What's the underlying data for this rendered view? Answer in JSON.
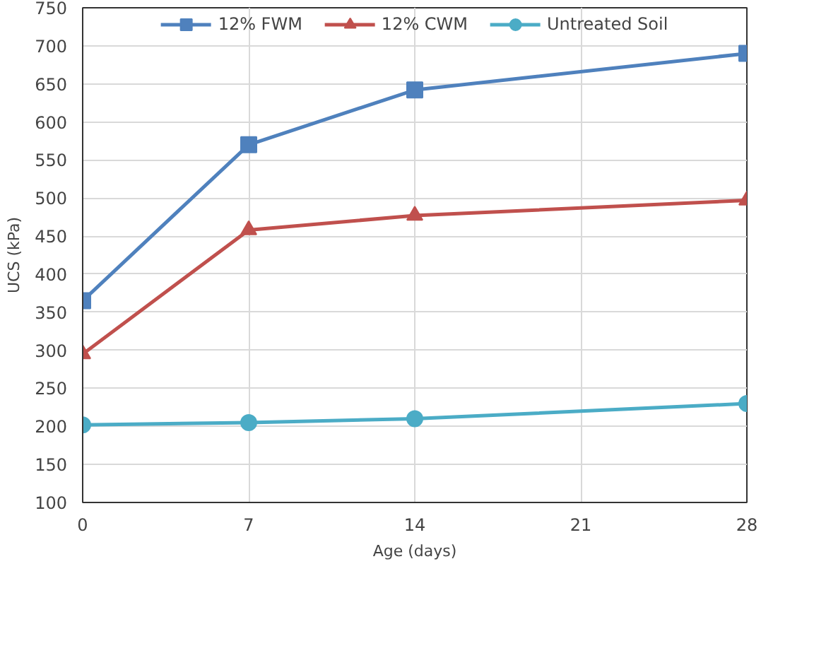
{
  "chart_data": {
    "type": "line",
    "xlabel": "Age (days)",
    "ylabel": "UCS (kPa)",
    "x": [
      0,
      7,
      14,
      28
    ],
    "series": [
      {
        "name": "12% FWM",
        "color": "#4f81bd",
        "marker": "square",
        "values": [
          365,
          570,
          642,
          690
        ]
      },
      {
        "name": "12% CWM",
        "color": "#c0504d",
        "marker": "triangle",
        "values": [
          295,
          458,
          477,
          497
        ]
      },
      {
        "name": "Untreated Soil",
        "color": "#4bacc6",
        "marker": "circle",
        "values": [
          202,
          205,
          210,
          230
        ]
      }
    ],
    "xlim": [
      0,
      28
    ],
    "xticks": [
      0,
      7,
      14,
      21,
      28
    ],
    "ylim": [
      100,
      750
    ],
    "yticks": [
      100,
      150,
      200,
      250,
      300,
      350,
      400,
      450,
      500,
      550,
      600,
      650,
      700,
      750
    ],
    "grid": true,
    "legend": "top",
    "line_style": "solid"
  }
}
